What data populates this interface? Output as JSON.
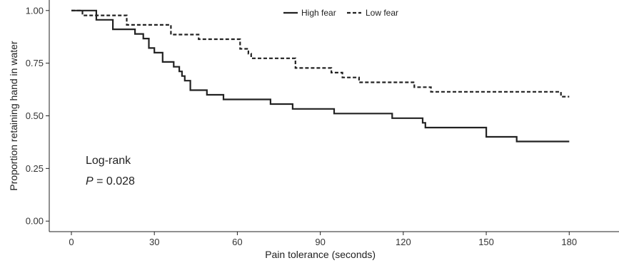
{
  "chart_data": {
    "type": "line",
    "step": true,
    "xlabel": "Pain tolerance (seconds)",
    "ylabel": "Proportion retaining hand in water",
    "xlim": [
      -8,
      198
    ],
    "ylim": [
      -0.05,
      1.05
    ],
    "x_ticks": [
      0,
      30,
      60,
      90,
      120,
      150,
      180
    ],
    "x_tick_labels": [
      "0",
      "30",
      "60",
      "90",
      "120",
      "150",
      "180"
    ],
    "y_ticks": [
      0,
      0.25,
      0.5,
      0.75,
      1.0
    ],
    "y_tick_labels": [
      "0.00",
      "0.25",
      "0.50",
      "0.75",
      "1.00"
    ],
    "grid": false,
    "legend_position": "top",
    "series": [
      {
        "name": "High fear",
        "line_style": "solid",
        "color": "#222222",
        "points": [
          [
            0,
            1.0
          ],
          [
            9,
            0.956
          ],
          [
            15,
            0.911
          ],
          [
            23,
            0.889
          ],
          [
            26,
            0.867
          ],
          [
            28,
            0.822
          ],
          [
            30,
            0.8
          ],
          [
            33,
            0.756
          ],
          [
            37,
            0.733
          ],
          [
            39,
            0.711
          ],
          [
            40,
            0.689
          ],
          [
            41,
            0.667
          ],
          [
            43,
            0.622
          ],
          [
            49,
            0.6
          ],
          [
            55,
            0.578
          ],
          [
            72,
            0.556
          ],
          [
            80,
            0.533
          ],
          [
            95,
            0.511
          ],
          [
            116,
            0.489
          ],
          [
            127,
            0.467
          ],
          [
            128,
            0.444
          ],
          [
            150,
            0.4
          ],
          [
            161,
            0.378
          ],
          [
            180,
            0.378
          ]
        ]
      },
      {
        "name": "Low fear",
        "line_style": "dashed",
        "color": "#222222",
        "points": [
          [
            0,
            1.0
          ],
          [
            4,
            0.977
          ],
          [
            20,
            0.932
          ],
          [
            36,
            0.886
          ],
          [
            46,
            0.864
          ],
          [
            61,
            0.818
          ],
          [
            64,
            0.795
          ],
          [
            65,
            0.773
          ],
          [
            81,
            0.727
          ],
          [
            94,
            0.705
          ],
          [
            98,
            0.682
          ],
          [
            104,
            0.659
          ],
          [
            124,
            0.636
          ],
          [
            130,
            0.614
          ],
          [
            177,
            0.591
          ],
          [
            180,
            0.591
          ]
        ]
      }
    ],
    "annotations": [
      {
        "text": "Log-rank"
      },
      {
        "p_label": "P",
        "p_text": " = 0.028"
      }
    ]
  }
}
